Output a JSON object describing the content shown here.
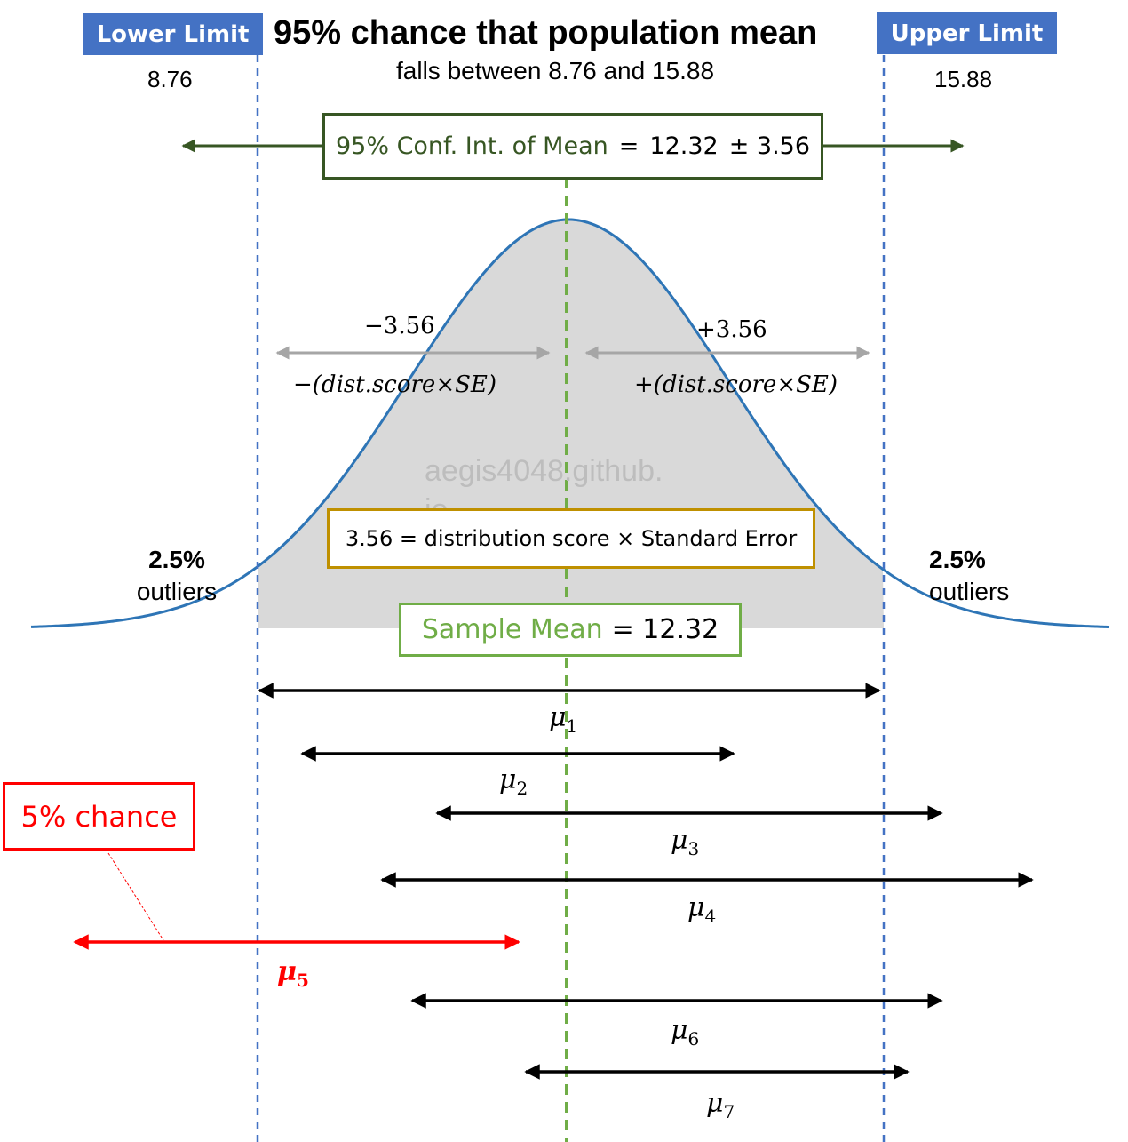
{
  "title": "95% chance that population mean",
  "subtitle": "falls between 8.76 and 15.88",
  "lower": {
    "label": "Lower Limit",
    "value": "8.76"
  },
  "upper": {
    "label": "Upper Limit",
    "value": "15.88"
  },
  "ci_box": {
    "label": "95% Conf. Int. of Mean",
    "eq": "=",
    "value": "12.32",
    "pm": "± 3.56"
  },
  "minus": {
    "value": "−3.56",
    "expr": "−(dist.score×SE)"
  },
  "plus": {
    "value": "+3.56",
    "expr": "+(dist.score×SE)"
  },
  "watermark": {
    "line1": "aegis4048.github.",
    "line2": "io"
  },
  "formula_box": "3.56 = distribution score  × Standard Error",
  "left_tail": {
    "pct": "2.5%",
    "word": "outliers"
  },
  "right_tail": {
    "pct": "2.5%",
    "word": "outliers"
  },
  "sample_mean": {
    "label": "Sample Mean",
    "value": "= 12.32"
  },
  "chance_box": "5% chance",
  "mus": [
    {
      "sym": "μ",
      "idx": "1"
    },
    {
      "sym": "μ",
      "idx": "2"
    },
    {
      "sym": "μ",
      "idx": "3"
    },
    {
      "sym": "μ",
      "idx": "4"
    },
    {
      "sym": "μ",
      "idx": "5"
    },
    {
      "sym": "μ",
      "idx": "6"
    },
    {
      "sym": "μ",
      "idx": "7"
    }
  ],
  "colors": {
    "blue": "#4472C4",
    "curve": "#2E75B6",
    "shade": "#D9D9D9",
    "green_dark": "#375623",
    "green": "#70AD47",
    "gold": "#BF9000",
    "red": "#FF0000",
    "grey_arrow": "#A6A6A6"
  }
}
